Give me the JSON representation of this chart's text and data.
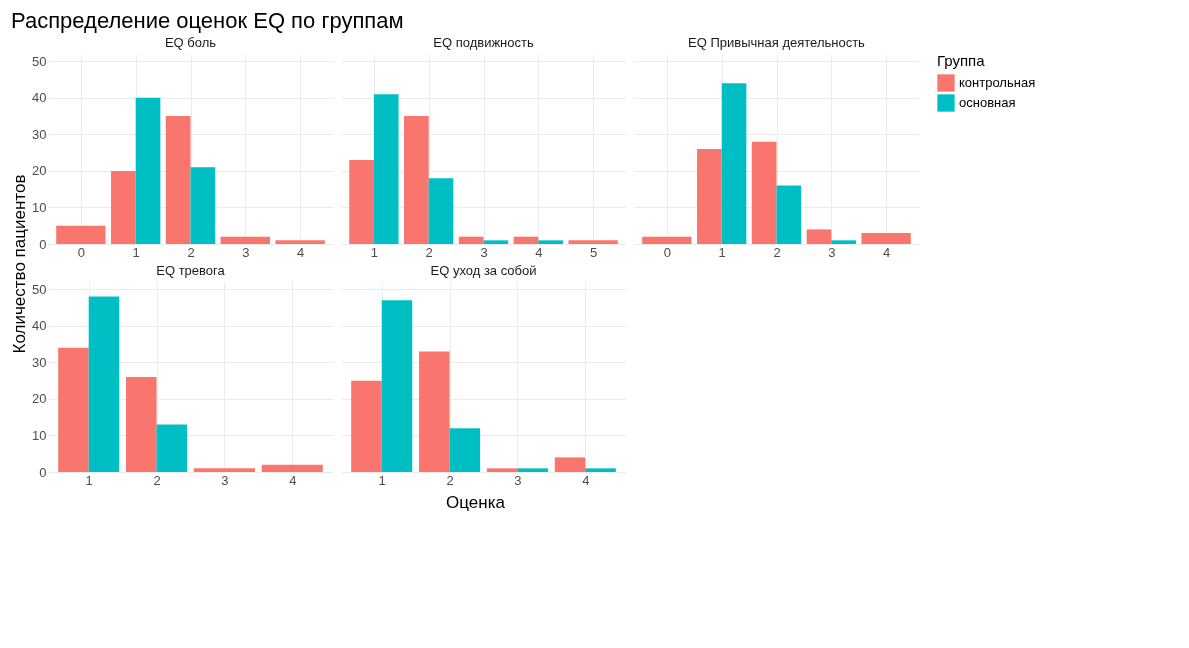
{
  "chart_data": [
    {
      "type": "bar",
      "title": "Распределение оценок EQ по группам",
      "subtitle": "EQ боль",
      "ylabel": "Количество пациентов",
      "legend_title": "Группа",
      "legend": "right",
      "grid": true,
      "ylim": [
        0,
        52
      ],
      "yticks": [
        0,
        10,
        20,
        30,
        40,
        50
      ],
      "categories": [
        "0",
        "1",
        "2",
        "3",
        "4"
      ],
      "series": [
        {
          "name": "контрольная",
          "color": "#f8766d",
          "values": [
            5,
            20,
            35,
            2,
            1
          ]
        },
        {
          "name": "основная",
          "color": "#00bfc4",
          "values": [
            null,
            40,
            21,
            null,
            null
          ]
        }
      ]
    },
    {
      "type": "bar",
      "subtitle": "EQ подвижность",
      "grid": true,
      "tick_labels": "x",
      "ylim": [
        0,
        52
      ],
      "yticks": [
        0,
        10,
        20,
        30,
        40,
        50
      ],
      "categories": [
        "1",
        "2",
        "3",
        "4",
        "5"
      ],
      "series": [
        {
          "name": "контрольная",
          "color": "#f8766d",
          "values": [
            23,
            35,
            2,
            2,
            1
          ]
        },
        {
          "name": "основная",
          "color": "#00bfc4",
          "values": [
            41,
            18,
            1,
            1,
            null
          ]
        }
      ]
    },
    {
      "type": "bar",
      "subtitle": "EQ Привычная деятельность",
      "grid": true,
      "tick_labels": "x",
      "ylim": [
        0,
        52
      ],
      "yticks": [
        0,
        10,
        20,
        30,
        40,
        50
      ],
      "categories": [
        "0",
        "1",
        "2",
        "3",
        "4"
      ],
      "series": [
        {
          "name": "контрольная",
          "color": "#f8766d",
          "values": [
            2,
            26,
            28,
            4,
            3
          ]
        },
        {
          "name": "основная",
          "color": "#00bfc4",
          "values": [
            null,
            44,
            16,
            1,
            null
          ]
        }
      ]
    },
    {
      "type": "bar",
      "subtitle": "EQ тревога",
      "grid": true,
      "ylim": [
        0,
        52
      ],
      "yticks": [
        0,
        10,
        20,
        30,
        40,
        50
      ],
      "categories": [
        "1",
        "2",
        "3",
        "4"
      ],
      "series": [
        {
          "name": "контрольная",
          "color": "#f8766d",
          "values": [
            34,
            26,
            1,
            2
          ]
        },
        {
          "name": "основная",
          "color": "#00bfc4",
          "values": [
            48,
            13,
            null,
            null
          ]
        }
      ]
    },
    {
      "type": "bar",
      "subtitle": "EQ уход за собой",
      "xlabel": "Оценка",
      "grid": true,
      "tick_labels": "x",
      "ylim": [
        0,
        52
      ],
      "yticks": [
        0,
        10,
        20,
        30,
        40,
        50
      ],
      "categories": [
        "1",
        "2",
        "3",
        "4"
      ],
      "series": [
        {
          "name": "контрольная",
          "color": "#f8766d",
          "values": [
            25,
            33,
            1,
            4
          ]
        },
        {
          "name": "основная",
          "color": "#00bfc4",
          "values": [
            47,
            12,
            1,
            1
          ]
        }
      ]
    }
  ]
}
